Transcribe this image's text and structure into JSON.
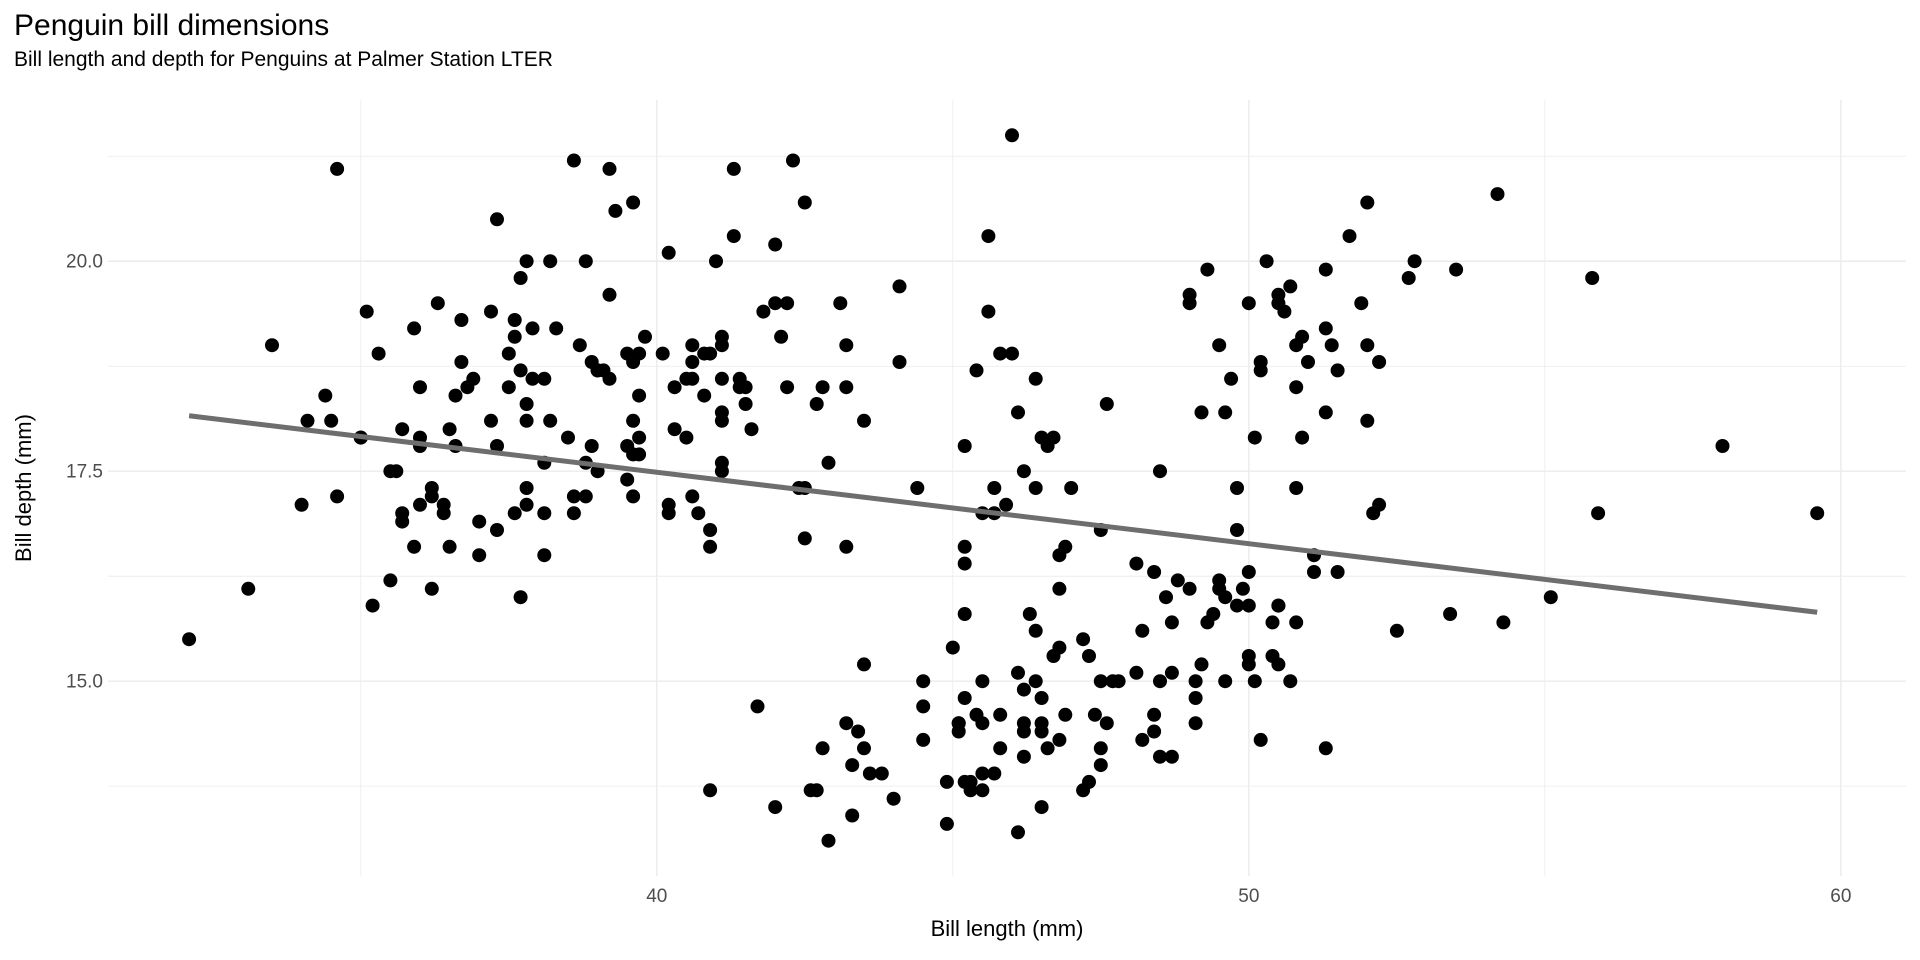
{
  "chart_data": {
    "type": "scatter",
    "title": "Penguin bill dimensions",
    "subtitle": "Bill length and depth for Penguins at Palmer Station LTER",
    "xlabel": "Bill length (mm)",
    "ylabel": "Bill depth (mm)",
    "xlim": [
      30.73,
      61.1
    ],
    "ylim": [
      12.68,
      21.92
    ],
    "x_ticks": [
      40,
      50,
      60
    ],
    "x_tick_labels": [
      "40",
      "50",
      "60"
    ],
    "x_minor_ticks": [
      35,
      45,
      55
    ],
    "y_ticks": [
      15.0,
      17.5,
      20.0
    ],
    "y_tick_labels": [
      "15.0",
      "17.5",
      "20.0"
    ],
    "y_minor_ticks": [
      13.75,
      16.25,
      18.75,
      21.25
    ],
    "grid": true,
    "legend": "none",
    "colors": {
      "point": "#000000",
      "grid": "#ebebeb",
      "tick_label": "#4d4d4d",
      "trend_line": "#6e6e6e",
      "background": "#ffffff"
    },
    "point_radius": 7,
    "trend_line": {
      "x1": 32.1,
      "y1": 18.16,
      "x2": 59.6,
      "y2": 15.82,
      "width": 5
    },
    "points": [
      [
        39.1,
        18.7
      ],
      [
        39.5,
        17.4
      ],
      [
        40.3,
        18.0
      ],
      [
        36.7,
        19.3
      ],
      [
        39.3,
        20.6
      ],
      [
        38.9,
        17.8
      ],
      [
        39.2,
        19.6
      ],
      [
        34.1,
        18.1
      ],
      [
        42.0,
        20.2
      ],
      [
        37.8,
        17.1
      ],
      [
        37.8,
        17.3
      ],
      [
        41.1,
        17.6
      ],
      [
        38.6,
        21.2
      ],
      [
        34.6,
        21.1
      ],
      [
        36.6,
        17.8
      ],
      [
        38.7,
        19.0
      ],
      [
        42.5,
        20.7
      ],
      [
        34.4,
        18.4
      ],
      [
        46.0,
        21.5
      ],
      [
        37.8,
        18.3
      ],
      [
        37.7,
        18.7
      ],
      [
        35.9,
        19.2
      ],
      [
        38.2,
        18.1
      ],
      [
        38.8,
        17.2
      ],
      [
        35.3,
        18.9
      ],
      [
        40.6,
        18.6
      ],
      [
        40.5,
        17.9
      ],
      [
        37.9,
        19.2
      ],
      [
        40.5,
        18.6
      ],
      [
        39.5,
        18.9
      ],
      [
        37.2,
        18.1
      ],
      [
        39.5,
        17.8
      ],
      [
        40.9,
        18.9
      ],
      [
        36.4,
        17.0
      ],
      [
        39.2,
        21.1
      ],
      [
        38.8,
        20.0
      ],
      [
        42.2,
        18.5
      ],
      [
        37.6,
        19.3
      ],
      [
        39.8,
        19.1
      ],
      [
        36.5,
        18.0
      ],
      [
        40.8,
        18.4
      ],
      [
        36.0,
        18.5
      ],
      [
        44.1,
        19.7
      ],
      [
        37.0,
        16.9
      ],
      [
        39.6,
        18.8
      ],
      [
        41.1,
        19.0
      ],
      [
        37.5,
        18.9
      ],
      [
        36.0,
        17.9
      ],
      [
        42.3,
        21.2
      ],
      [
        39.6,
        17.7
      ],
      [
        40.1,
        18.9
      ],
      [
        35.0,
        17.9
      ],
      [
        42.0,
        19.5
      ],
      [
        34.5,
        18.1
      ],
      [
        41.4,
        18.6
      ],
      [
        39.0,
        17.5
      ],
      [
        40.6,
        18.8
      ],
      [
        36.5,
        16.6
      ],
      [
        37.6,
        19.1
      ],
      [
        35.7,
        16.9
      ],
      [
        41.3,
        21.1
      ],
      [
        37.6,
        17.0
      ],
      [
        41.1,
        18.2
      ],
      [
        36.4,
        17.1
      ],
      [
        41.6,
        18.0
      ],
      [
        35.5,
        16.2
      ],
      [
        41.1,
        19.1
      ],
      [
        35.9,
        16.6
      ],
      [
        41.8,
        19.4
      ],
      [
        33.5,
        19.0
      ],
      [
        39.7,
        18.4
      ],
      [
        39.6,
        17.2
      ],
      [
        45.8,
        18.9
      ],
      [
        35.5,
        17.5
      ],
      [
        42.8,
        18.5
      ],
      [
        40.9,
        16.8
      ],
      [
        37.2,
        19.4
      ],
      [
        36.2,
        16.1
      ],
      [
        42.1,
        19.1
      ],
      [
        34.6,
        17.2
      ],
      [
        42.9,
        17.6
      ],
      [
        36.7,
        18.8
      ],
      [
        35.1,
        19.4
      ],
      [
        37.3,
        17.8
      ],
      [
        41.3,
        20.3
      ],
      [
        36.3,
        19.5
      ],
      [
        36.9,
        18.6
      ],
      [
        38.3,
        19.2
      ],
      [
        38.9,
        18.8
      ],
      [
        35.7,
        18.0
      ],
      [
        41.1,
        18.1
      ],
      [
        34.0,
        17.1
      ],
      [
        39.6,
        18.1
      ],
      [
        36.2,
        17.3
      ],
      [
        40.8,
        18.9
      ],
      [
        38.1,
        18.6
      ],
      [
        40.3,
        18.5
      ],
      [
        33.1,
        16.1
      ],
      [
        43.2,
        18.5
      ],
      [
        35.0,
        17.9
      ],
      [
        41.0,
        20.0
      ],
      [
        37.7,
        16.0
      ],
      [
        37.8,
        20.0
      ],
      [
        37.9,
        18.6
      ],
      [
        39.7,
        18.9
      ],
      [
        38.6,
        17.2
      ],
      [
        38.2,
        20.0
      ],
      [
        38.1,
        17.0
      ],
      [
        43.2,
        19.0
      ],
      [
        38.1,
        16.5
      ],
      [
        45.6,
        20.3
      ],
      [
        39.7,
        17.7
      ],
      [
        42.2,
        19.5
      ],
      [
        39.6,
        20.7
      ],
      [
        42.7,
        18.3
      ],
      [
        38.6,
        17.0
      ],
      [
        37.3,
        20.5
      ],
      [
        35.7,
        17.0
      ],
      [
        41.1,
        18.6
      ],
      [
        36.2,
        17.2
      ],
      [
        37.7,
        19.8
      ],
      [
        40.2,
        17.0
      ],
      [
        41.4,
        18.5
      ],
      [
        35.2,
        15.9
      ],
      [
        40.6,
        19.0
      ],
      [
        38.8,
        17.6
      ],
      [
        41.5,
        18.3
      ],
      [
        39.0,
        18.7
      ],
      [
        44.1,
        18.8
      ],
      [
        38.5,
        17.9
      ],
      [
        43.1,
        19.5
      ],
      [
        36.8,
        18.5
      ],
      [
        37.5,
        18.5
      ],
      [
        38.1,
        17.6
      ],
      [
        41.1,
        17.5
      ],
      [
        35.6,
        17.5
      ],
      [
        40.2,
        20.1
      ],
      [
        37.0,
        16.5
      ],
      [
        39.7,
        17.9
      ],
      [
        40.2,
        17.1
      ],
      [
        40.6,
        17.2
      ],
      [
        32.1,
        15.5
      ],
      [
        40.7,
        17.0
      ],
      [
        37.3,
        16.8
      ],
      [
        39.0,
        18.7
      ],
      [
        39.2,
        18.6
      ],
      [
        36.6,
        18.4
      ],
      [
        36.0,
        17.8
      ],
      [
        37.8,
        18.1
      ],
      [
        36.0,
        17.1
      ],
      [
        41.5,
        18.5
      ],
      [
        46.5,
        17.9
      ],
      [
        50.0,
        19.5
      ],
      [
        51.3,
        19.2
      ],
      [
        45.4,
        18.7
      ],
      [
        52.7,
        19.8
      ],
      [
        45.2,
        17.8
      ],
      [
        46.1,
        18.2
      ],
      [
        51.3,
        18.2
      ],
      [
        46.0,
        18.9
      ],
      [
        51.3,
        19.9
      ],
      [
        46.6,
        17.8
      ],
      [
        51.7,
        20.3
      ],
      [
        47.0,
        17.3
      ],
      [
        52.0,
        18.1
      ],
      [
        45.9,
        17.1
      ],
      [
        50.5,
        19.6
      ],
      [
        50.3,
        20.0
      ],
      [
        58.0,
        17.8
      ],
      [
        46.4,
        18.6
      ],
      [
        49.2,
        18.2
      ],
      [
        42.4,
        17.3
      ],
      [
        48.5,
        17.5
      ],
      [
        43.2,
        16.6
      ],
      [
        50.6,
        19.4
      ],
      [
        46.7,
        17.9
      ],
      [
        52.0,
        19.0
      ],
      [
        50.5,
        19.5
      ],
      [
        49.5,
        19.0
      ],
      [
        46.4,
        17.3
      ],
      [
        52.8,
        20.0
      ],
      [
        40.9,
        16.6
      ],
      [
        54.2,
        20.8
      ],
      [
        42.5,
        16.7
      ],
      [
        51.0,
        18.8
      ],
      [
        49.7,
        18.6
      ],
      [
        47.5,
        16.8
      ],
      [
        47.6,
        18.3
      ],
      [
        52.0,
        20.7
      ],
      [
        46.9,
        16.6
      ],
      [
        53.5,
        19.9
      ],
      [
        49.0,
        19.5
      ],
      [
        46.2,
        17.5
      ],
      [
        50.9,
        19.1
      ],
      [
        45.5,
        17.0
      ],
      [
        50.9,
        17.9
      ],
      [
        50.8,
        18.5
      ],
      [
        50.1,
        17.9
      ],
      [
        49.0,
        19.6
      ],
      [
        51.5,
        18.7
      ],
      [
        49.8,
        17.3
      ],
      [
        48.1,
        16.4
      ],
      [
        51.4,
        19.0
      ],
      [
        45.7,
        17.3
      ],
      [
        50.7,
        19.7
      ],
      [
        42.5,
        17.3
      ],
      [
        52.2,
        18.8
      ],
      [
        45.2,
        16.6
      ],
      [
        49.3,
        19.9
      ],
      [
        50.2,
        18.8
      ],
      [
        45.6,
        19.4
      ],
      [
        51.9,
        19.5
      ],
      [
        46.8,
        16.5
      ],
      [
        45.7,
        17.0
      ],
      [
        55.8,
        19.8
      ],
      [
        43.5,
        18.1
      ],
      [
        49.6,
        18.2
      ],
      [
        50.8,
        19.0
      ],
      [
        50.2,
        18.7
      ],
      [
        46.1,
        13.2
      ],
      [
        50.0,
        16.3
      ],
      [
        48.7,
        14.1
      ],
      [
        50.0,
        15.2
      ],
      [
        47.6,
        14.5
      ],
      [
        46.5,
        13.5
      ],
      [
        45.4,
        14.6
      ],
      [
        46.7,
        15.3
      ],
      [
        43.3,
        13.4
      ],
      [
        46.8,
        15.4
      ],
      [
        40.9,
        13.7
      ],
      [
        49.0,
        16.1
      ],
      [
        45.5,
        13.7
      ],
      [
        48.4,
        14.6
      ],
      [
        45.8,
        14.6
      ],
      [
        49.3,
        15.7
      ],
      [
        42.0,
        13.5
      ],
      [
        49.2,
        15.2
      ],
      [
        46.2,
        14.5
      ],
      [
        48.7,
        15.1
      ],
      [
        50.2,
        14.3
      ],
      [
        45.1,
        14.5
      ],
      [
        46.5,
        14.5
      ],
      [
        46.3,
        15.8
      ],
      [
        42.9,
        13.1
      ],
      [
        46.1,
        15.1
      ],
      [
        44.5,
        14.3
      ],
      [
        47.8,
        15.0
      ],
      [
        48.2,
        14.3
      ],
      [
        50.0,
        15.3
      ],
      [
        47.3,
        15.3
      ],
      [
        42.8,
        14.2
      ],
      [
        45.1,
        14.5
      ],
      [
        59.6,
        17.0
      ],
      [
        49.1,
        14.8
      ],
      [
        48.4,
        16.3
      ],
      [
        42.6,
        13.7
      ],
      [
        44.4,
        17.3
      ],
      [
        44.0,
        13.6
      ],
      [
        48.7,
        15.7
      ],
      [
        42.7,
        13.7
      ],
      [
        49.6,
        16.0
      ],
      [
        45.3,
        13.7
      ],
      [
        49.6,
        15.0
      ],
      [
        50.5,
        15.9
      ],
      [
        43.6,
        13.9
      ],
      [
        45.5,
        13.9
      ],
      [
        50.5,
        15.9
      ],
      [
        44.9,
        13.3
      ],
      [
        45.2,
        15.8
      ],
      [
        46.6,
        14.2
      ],
      [
        48.5,
        14.1
      ],
      [
        45.1,
        14.4
      ],
      [
        50.1,
        15.0
      ],
      [
        46.5,
        14.4
      ],
      [
        45.0,
        15.4
      ],
      [
        43.8,
        13.9
      ],
      [
        45.5,
        15.0
      ],
      [
        43.2,
        14.5
      ],
      [
        50.4,
        15.3
      ],
      [
        45.3,
        13.8
      ],
      [
        46.2,
        14.9
      ],
      [
        45.7,
        13.9
      ],
      [
        54.3,
        15.7
      ],
      [
        45.8,
        14.2
      ],
      [
        49.8,
        16.8
      ],
      [
        46.2,
        14.4
      ],
      [
        49.5,
        16.2
      ],
      [
        43.5,
        14.2
      ],
      [
        50.7,
        15.0
      ],
      [
        47.7,
        15.0
      ],
      [
        46.4,
        15.6
      ],
      [
        48.2,
        15.6
      ],
      [
        46.5,
        14.8
      ],
      [
        46.4,
        15.0
      ],
      [
        48.6,
        16.0
      ],
      [
        47.5,
        14.2
      ],
      [
        51.1,
        16.3
      ],
      [
        45.2,
        13.8
      ],
      [
        45.2,
        16.4
      ],
      [
        49.1,
        14.5
      ],
      [
        52.5,
        15.6
      ],
      [
        47.4,
        14.6
      ],
      [
        50.0,
        15.9
      ],
      [
        44.9,
        13.8
      ],
      [
        50.8,
        17.3
      ],
      [
        43.4,
        14.4
      ],
      [
        51.3,
        14.2
      ],
      [
        47.5,
        14.0
      ],
      [
        52.1,
        17.0
      ],
      [
        47.5,
        15.0
      ],
      [
        52.2,
        17.1
      ],
      [
        45.5,
        14.5
      ],
      [
        49.5,
        16.1
      ],
      [
        44.5,
        14.7
      ],
      [
        50.8,
        15.7
      ],
      [
        49.4,
        15.8
      ],
      [
        46.9,
        14.6
      ],
      [
        48.4,
        14.4
      ],
      [
        51.1,
        16.5
      ],
      [
        48.5,
        15.0
      ],
      [
        55.9,
        17.0
      ],
      [
        47.2,
        15.5
      ],
      [
        49.1,
        15.0
      ],
      [
        47.3,
        13.8
      ],
      [
        46.8,
        16.1
      ],
      [
        41.7,
        14.7
      ],
      [
        53.4,
        15.8
      ],
      [
        43.3,
        14.0
      ],
      [
        48.1,
        15.1
      ],
      [
        50.5,
        15.2
      ],
      [
        49.8,
        15.9
      ],
      [
        43.5,
        15.2
      ],
      [
        51.5,
        16.3
      ],
      [
        46.2,
        14.1
      ],
      [
        55.1,
        16.0
      ],
      [
        44.5,
        15.0
      ],
      [
        48.8,
        16.2
      ],
      [
        47.2,
        13.7
      ],
      [
        46.8,
        14.3
      ],
      [
        50.4,
        15.7
      ],
      [
        45.2,
        14.8
      ],
      [
        49.9,
        16.1
      ]
    ]
  }
}
